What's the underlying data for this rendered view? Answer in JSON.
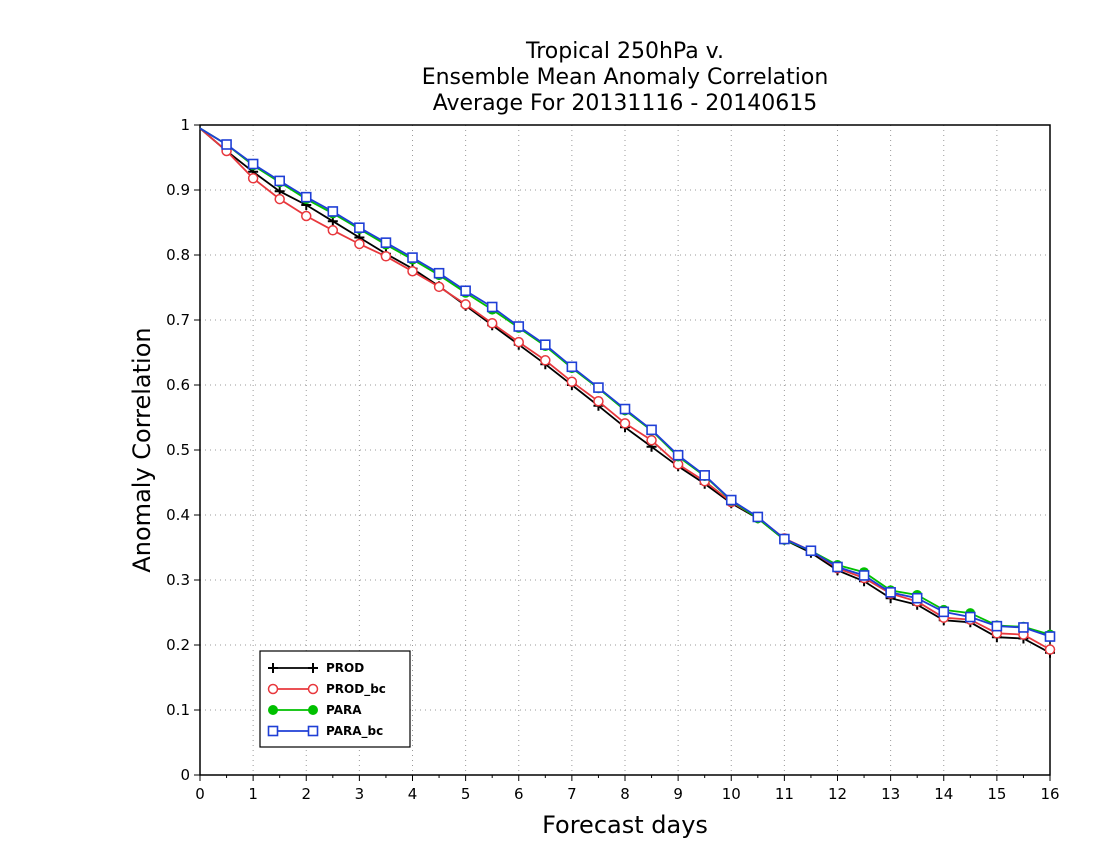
{
  "chart_data": {
    "type": "line",
    "title_lines": [
      "Tropical 250hPa v.",
      "Ensemble Mean Anomaly Correlation",
      "Average For 20131116 - 20140615"
    ],
    "xlabel": "Forecast days",
    "ylabel": "Anomaly Correlation",
    "xlim": [
      0,
      16
    ],
    "ylim": [
      0,
      1
    ],
    "x_ticks": [
      "0",
      "1",
      "2",
      "3",
      "4",
      "5",
      "6",
      "7",
      "8",
      "9",
      "10",
      "11",
      "12",
      "13",
      "14",
      "15",
      "16"
    ],
    "y_ticks": [
      "0",
      "0.1",
      "0.2",
      "0.3",
      "0.4",
      "0.5",
      "0.6",
      "0.7",
      "0.8",
      "0.9",
      "1"
    ],
    "grid": true,
    "legend_position": "bottom-left",
    "x": [
      0,
      0.5,
      1,
      1.5,
      2,
      2.5,
      3,
      3.5,
      4,
      4.5,
      5,
      5.5,
      6,
      6.5,
      7,
      7.5,
      8,
      8.5,
      9,
      9.5,
      10,
      10.5,
      11,
      11.5,
      12,
      12.5,
      13,
      13.5,
      14,
      14.5,
      15,
      15.5,
      16
    ],
    "series": [
      {
        "name": "PROD",
        "color": "#000000",
        "marker": "plus",
        "values": [
          0.995,
          0.96,
          0.928,
          0.898,
          0.877,
          0.852,
          0.827,
          0.802,
          0.779,
          0.752,
          0.722,
          0.692,
          0.662,
          0.632,
          0.6,
          0.568,
          0.535,
          0.505,
          0.475,
          0.448,
          0.418,
          0.395,
          0.362,
          0.342,
          0.315,
          0.298,
          0.272,
          0.262,
          0.238,
          0.235,
          0.212,
          0.21,
          0.188
        ]
      },
      {
        "name": "PROD_bc",
        "color": "#e8383d",
        "marker": "circle-open",
        "values": [
          0.995,
          0.96,
          0.918,
          0.886,
          0.86,
          0.838,
          0.817,
          0.798,
          0.775,
          0.751,
          0.724,
          0.695,
          0.666,
          0.638,
          0.605,
          0.575,
          0.541,
          0.515,
          0.478,
          0.452,
          0.42,
          0.396,
          0.364,
          0.345,
          0.318,
          0.303,
          0.279,
          0.267,
          0.242,
          0.239,
          0.218,
          0.216,
          0.193
        ]
      },
      {
        "name": "PARA",
        "color": "#00c000",
        "marker": "circle-filled",
        "values": [
          0.995,
          0.97,
          0.938,
          0.912,
          0.886,
          0.864,
          0.84,
          0.816,
          0.793,
          0.769,
          0.742,
          0.716,
          0.688,
          0.66,
          0.626,
          0.595,
          0.561,
          0.53,
          0.49,
          0.46,
          0.422,
          0.395,
          0.362,
          0.345,
          0.323,
          0.312,
          0.284,
          0.277,
          0.254,
          0.249,
          0.23,
          0.228,
          0.216
        ]
      },
      {
        "name": "PARA_bc",
        "color": "#1f3fd6",
        "marker": "square-open",
        "values": [
          0.995,
          0.97,
          0.94,
          0.914,
          0.889,
          0.867,
          0.842,
          0.819,
          0.796,
          0.772,
          0.745,
          0.72,
          0.69,
          0.662,
          0.628,
          0.596,
          0.563,
          0.531,
          0.492,
          0.461,
          0.423,
          0.397,
          0.363,
          0.345,
          0.32,
          0.307,
          0.281,
          0.272,
          0.251,
          0.243,
          0.229,
          0.227,
          0.213
        ]
      }
    ]
  }
}
